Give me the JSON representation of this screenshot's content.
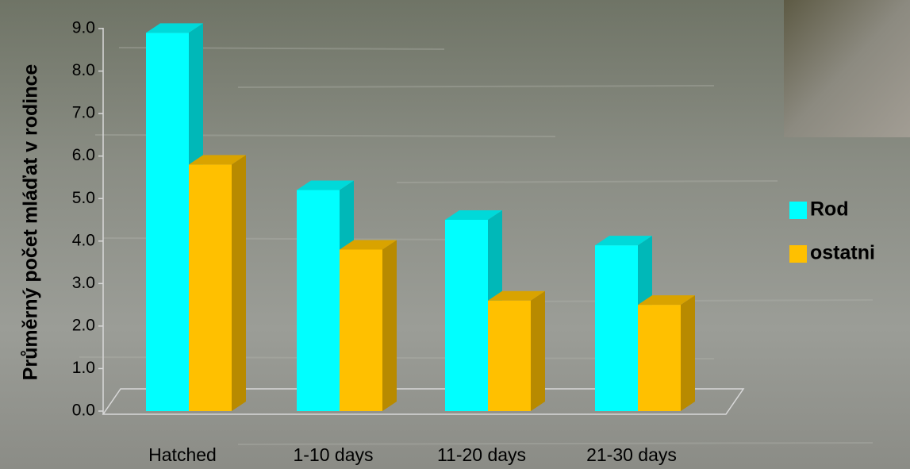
{
  "chart_data": {
    "type": "bar3d",
    "y_label": "Průměrný počet mláďat v rodince",
    "categories": [
      "Hatched",
      "1-10 days",
      "11-20 days",
      "21-30 days"
    ],
    "series": [
      {
        "name": "Rod",
        "color": "#00ffff",
        "values": [
          8.9,
          5.2,
          4.5,
          3.9
        ]
      },
      {
        "name": "ostatni",
        "color": "#ffc000",
        "values": [
          5.8,
          3.8,
          2.6,
          2.5
        ]
      }
    ],
    "ylim": [
      0,
      9
    ],
    "yticks": [
      {
        "value": 0,
        "label": "0.0"
      },
      {
        "value": 1,
        "label": "1.0"
      },
      {
        "value": 2,
        "label": "2.0"
      },
      {
        "value": 3,
        "label": "3.0"
      },
      {
        "value": 4,
        "label": "4.0"
      },
      {
        "value": 5,
        "label": "5.0"
      },
      {
        "value": 6,
        "label": "6.0"
      },
      {
        "value": 7,
        "label": "7.0"
      },
      {
        "value": 8,
        "label": "8.0"
      },
      {
        "value": 9,
        "label": "9.0"
      }
    ],
    "legend": "right"
  }
}
